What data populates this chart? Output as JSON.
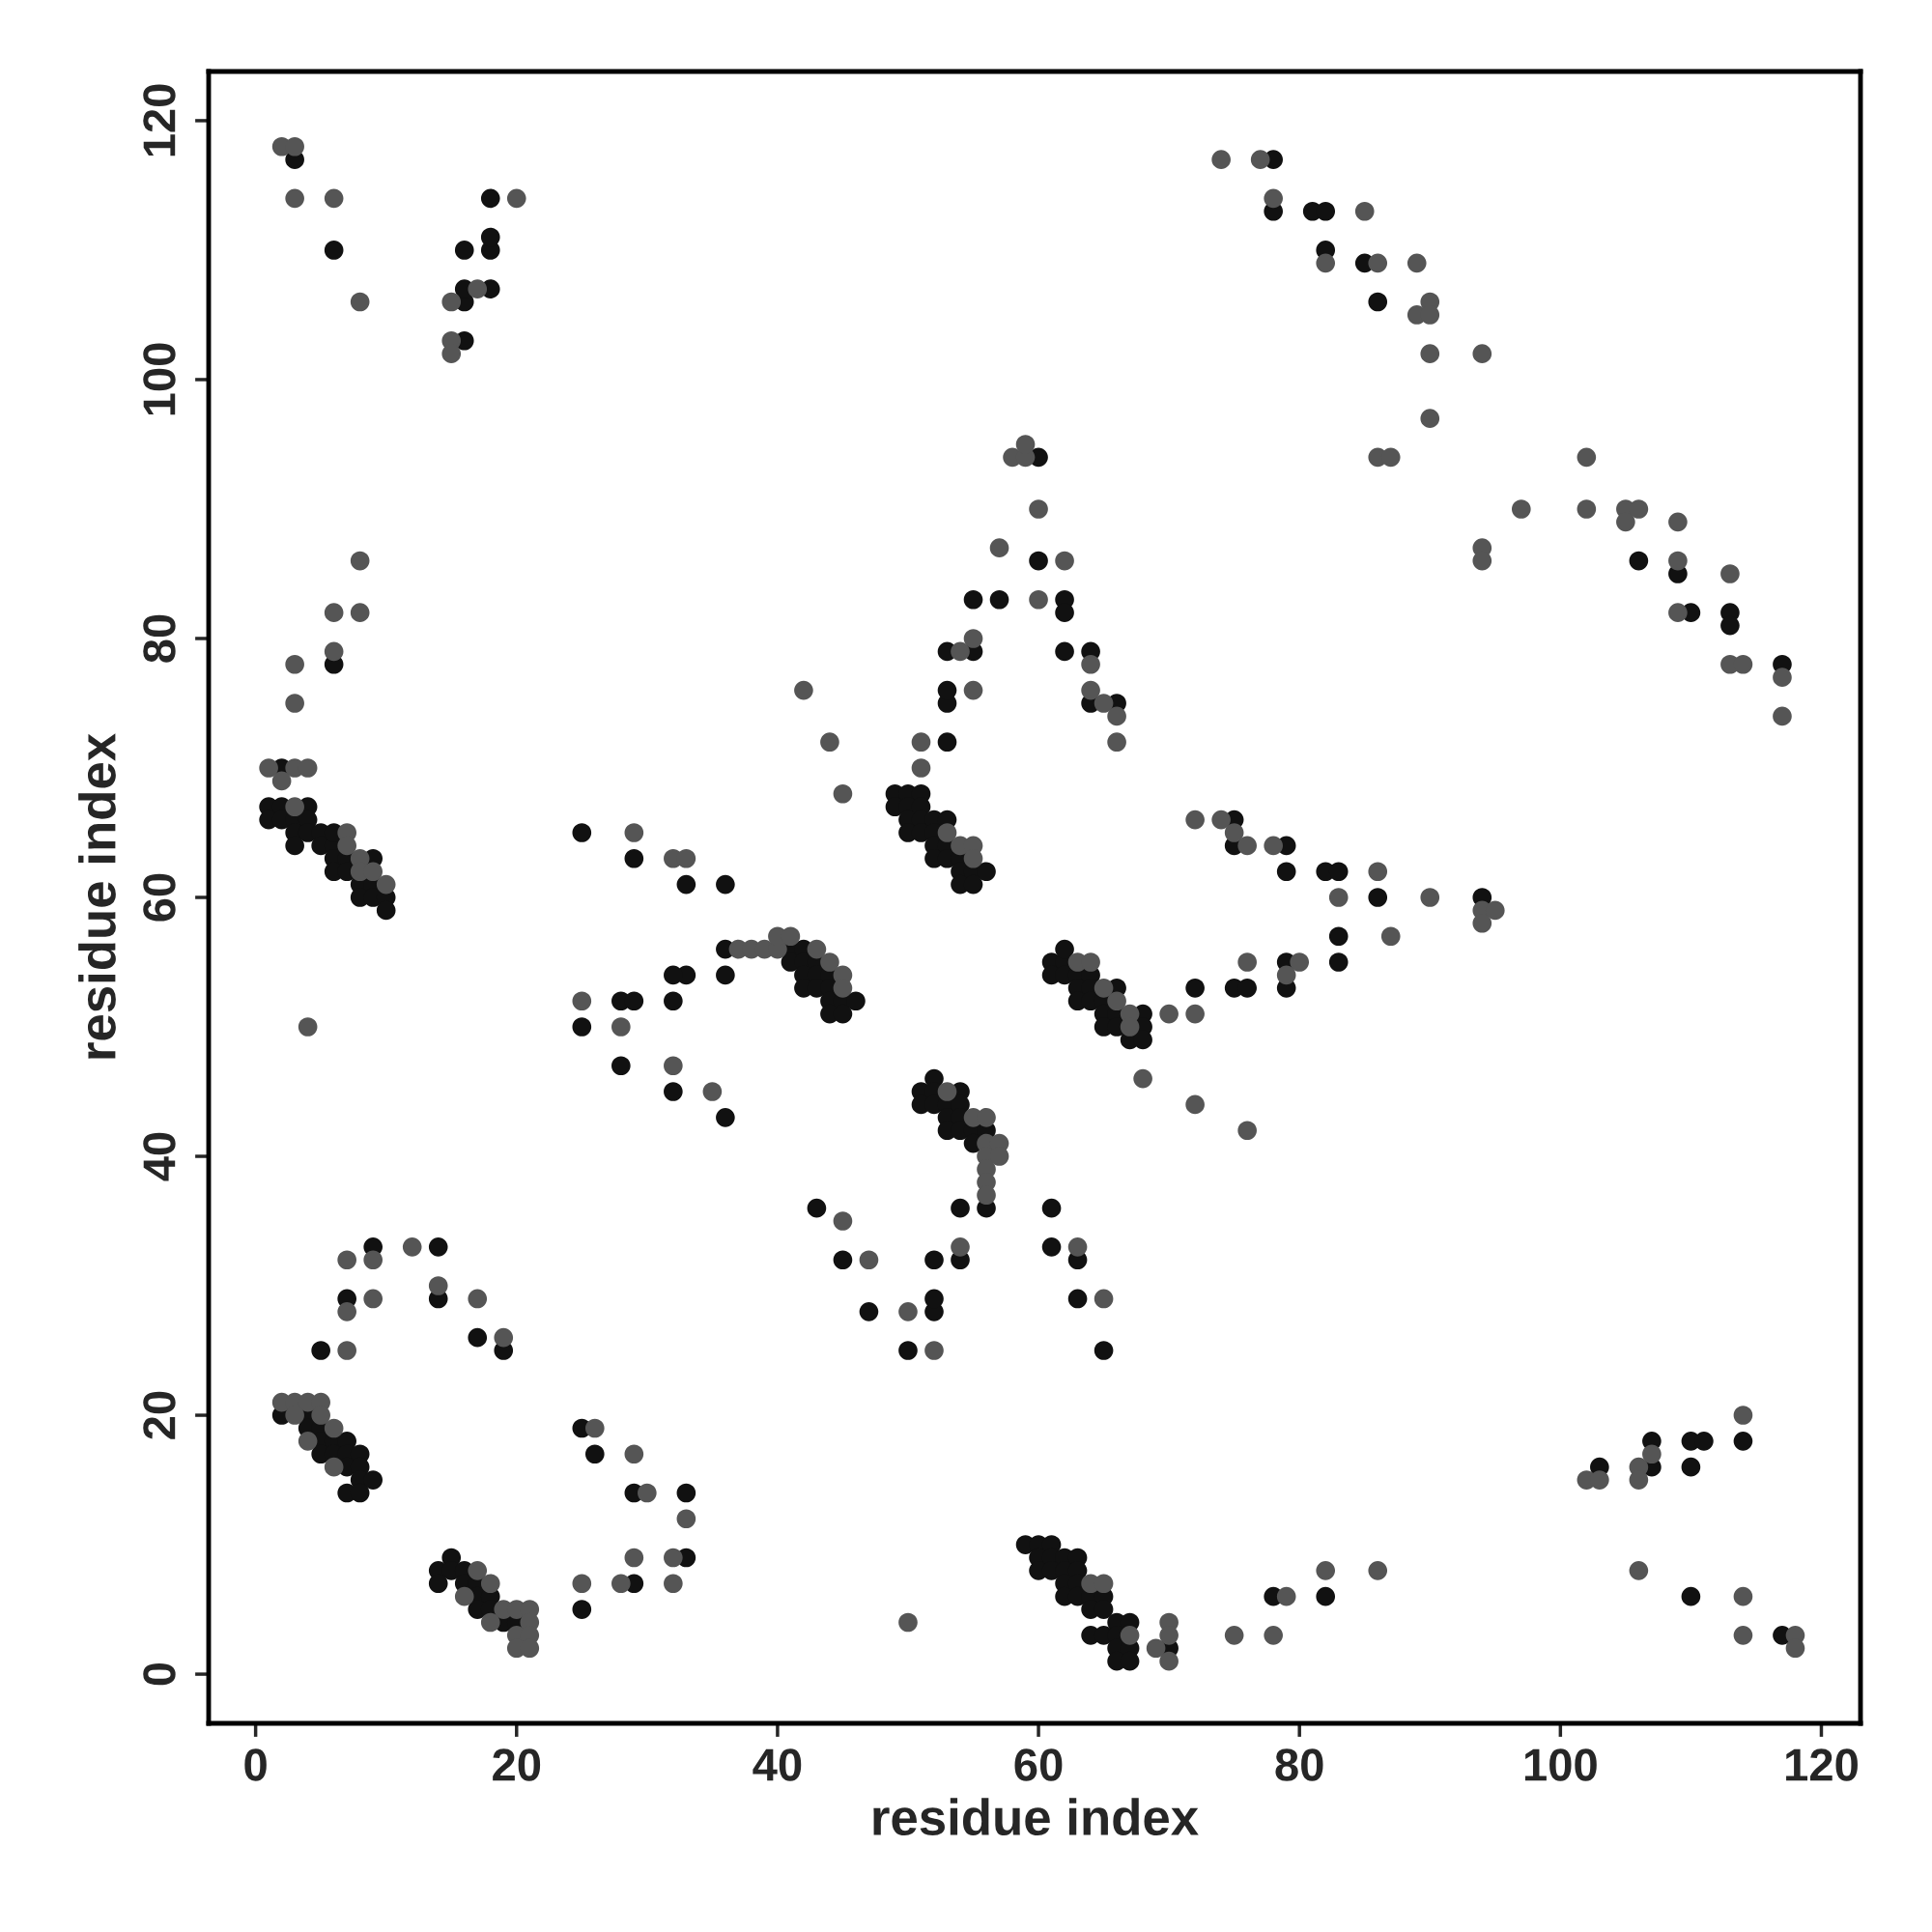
{
  "chart_data": {
    "type": "scatter",
    "xlabel": "residue index",
    "ylabel": "residue index",
    "xlim": [
      -3.6,
      123
    ],
    "ylim": [
      -3.8,
      123.8
    ],
    "xticks": [
      0,
      20,
      40,
      60,
      80,
      100,
      120
    ],
    "yticks": [
      0,
      20,
      40,
      60,
      80,
      100,
      120
    ],
    "grid": false,
    "marker": "circle",
    "series": [
      {
        "color": "#111111",
        "x": [
          3,
          6,
          16,
          16,
          16,
          16,
          18,
          18,
          18,
          18,
          78,
          78,
          81,
          82,
          82,
          85,
          86,
          106,
          109,
          110,
          113,
          113,
          117,
          6,
          2,
          1,
          2,
          4,
          1,
          2,
          3,
          4,
          3,
          4,
          5,
          3,
          5,
          6,
          6,
          6,
          7,
          9,
          6,
          7,
          8,
          9,
          8,
          9,
          10,
          10,
          9,
          14,
          14,
          7,
          17,
          5,
          19,
          2,
          4,
          4,
          5,
          5,
          6,
          7,
          5,
          6,
          7,
          8,
          7,
          8,
          8,
          9,
          7,
          8,
          14,
          15,
          15,
          16,
          14,
          16,
          17,
          17,
          18,
          17,
          18,
          19,
          20,
          25,
          26,
          29,
          33,
          33,
          29,
          25,
          25,
          29,
          33,
          36,
          36,
          41,
          42,
          41,
          42,
          43,
          42,
          43,
          44,
          42,
          43,
          44,
          44,
          45,
          46,
          44,
          45,
          36,
          33,
          32,
          28,
          29,
          32,
          25,
          28,
          32,
          36,
          43,
          45,
          47,
          50,
          52,
          52,
          52,
          54,
          54,
          51,
          52,
          51,
          52,
          52,
          53,
          53,
          54,
          54,
          54,
          53,
          54,
          55,
          55,
          56,
          56,
          49,
          50,
          51,
          49,
          50,
          51,
          50,
          51,
          52,
          53,
          50,
          51,
          52,
          52,
          53,
          52,
          53,
          54,
          54,
          55,
          56,
          54,
          55,
          53,
          53,
          53,
          53,
          55,
          55,
          57,
          60,
          60,
          62,
          62,
          62,
          64,
          64,
          66,
          61,
          62,
          61,
          62,
          62,
          63,
          64,
          63,
          64,
          63,
          64,
          66,
          65,
          65,
          66,
          68,
          65,
          66,
          68,
          67,
          68,
          61,
          61,
          63,
          63,
          65,
          59,
          60,
          61,
          60,
          61,
          62,
          63,
          60,
          61,
          62,
          63,
          62,
          63,
          62,
          63,
          64,
          65,
          64,
          65,
          66,
          67,
          64,
          65,
          66,
          66,
          67,
          66,
          67,
          70,
          78,
          82,
          75,
          75,
          79,
          79,
          82,
          83,
          86,
          94,
          83,
          83,
          79,
          79,
          75,
          76,
          72,
          103,
          107,
          107,
          110,
          111,
          110,
          114,
          110,
          117
        ],
        "values": [
          117,
          110,
          103,
          106,
          107,
          110,
          107,
          110,
          111,
          114,
          117,
          113,
          113,
          113,
          110,
          109,
          106,
          86,
          85,
          82,
          82,
          81,
          78,
          78,
          70,
          67,
          67,
          67,
          66,
          66,
          66,
          66,
          65,
          65,
          65,
          64,
          64,
          64,
          65,
          63,
          63,
          63,
          62,
          62,
          61,
          61,
          60,
          60,
          60,
          59,
          33,
          33,
          29,
          29,
          26,
          25,
          25,
          20,
          20,
          19,
          19,
          18,
          18,
          18,
          17,
          17,
          17,
          17,
          16,
          16,
          15,
          15,
          14,
          14,
          8,
          9,
          8,
          8,
          7,
          7,
          7,
          6,
          6,
          5,
          5,
          4,
          4,
          19,
          17,
          14,
          14,
          9,
          7,
          5,
          65,
          63,
          61,
          61,
          56,
          56,
          56,
          55,
          55,
          55,
          54,
          54,
          54,
          53,
          53,
          53,
          52,
          52,
          52,
          51,
          51,
          54,
          54,
          54,
          52,
          52,
          52,
          50,
          47,
          45,
          43,
          36,
          32,
          28,
          25,
          28,
          29,
          32,
          32,
          36,
          45,
          46,
          44,
          45,
          44,
          44,
          43,
          45,
          44,
          43,
          42,
          42,
          42,
          41,
          42,
          36,
          68,
          68,
          68,
          67,
          67,
          67,
          66,
          66,
          66,
          66,
          65,
          65,
          65,
          64,
          64,
          63,
          63,
          63,
          62,
          62,
          62,
          61,
          61,
          72,
          75,
          76,
          79,
          79,
          83,
          83,
          94,
          86,
          83,
          82,
          79,
          79,
          75,
          75,
          55,
          55,
          54,
          54,
          56,
          54,
          54,
          53,
          53,
          52,
          52,
          53,
          52,
          51,
          51,
          51,
          50,
          50,
          50,
          49,
          49,
          36,
          33,
          32,
          29,
          25,
          10,
          10,
          10,
          9,
          9,
          9,
          9,
          8,
          8,
          8,
          8,
          7,
          7,
          6,
          6,
          6,
          6,
          5,
          5,
          4,
          4,
          3,
          3,
          3,
          2,
          2,
          1,
          1,
          2,
          6,
          6,
          66,
          64,
          64,
          62,
          62,
          62,
          60,
          60,
          57,
          55,
          55,
          53,
          53,
          53,
          53,
          16,
          16,
          18,
          18,
          18,
          16,
          18,
          6,
          3
        ]
      },
      {
        "color": "#555555",
        "x": [
          2,
          3,
          3,
          6,
          8,
          15,
          15,
          15,
          17,
          20,
          74,
          77,
          78,
          82,
          85,
          86,
          89,
          89,
          90,
          90,
          90,
          90,
          94,
          86,
          87,
          94,
          94,
          97,
          102,
          102,
          105,
          105,
          106,
          109,
          109,
          109,
          113,
          113,
          114,
          117,
          117,
          8,
          6,
          8,
          6,
          3,
          3,
          1,
          3,
          4,
          2,
          3,
          7,
          7,
          8,
          8,
          9,
          10,
          4,
          12,
          7,
          9,
          14,
          9,
          17,
          7,
          19,
          7,
          2,
          3,
          4,
          5,
          3,
          5,
          6,
          4,
          6,
          17,
          18,
          16,
          19,
          18,
          20,
          21,
          21,
          20,
          21,
          20,
          21,
          26,
          29,
          30,
          33,
          29,
          32,
          25,
          28,
          32,
          29,
          32,
          33,
          37,
          38,
          39,
          40,
          40,
          41,
          43,
          44,
          45,
          45,
          25,
          28,
          32,
          35,
          45,
          47,
          50,
          52,
          54,
          50,
          53,
          55,
          56,
          56,
          56,
          57,
          57,
          56,
          56,
          56,
          53,
          54,
          55,
          55,
          45,
          44,
          42,
          51,
          51,
          54,
          55,
          55,
          57,
          58,
          59,
          59,
          60,
          60,
          62,
          64,
          64,
          65,
          66,
          66,
          63,
          64,
          65,
          66,
          67,
          67,
          70,
          68,
          63,
          65,
          64,
          65,
          67,
          69,
          70,
          70,
          70,
          75,
          79,
          78,
          82,
          86,
          72,
          74,
          75,
          76,
          78,
          86,
          83,
          90,
          94,
          95,
          94,
          87,
          80,
          79,
          76,
          72,
          72,
          76,
          102,
          103,
          106,
          106,
          107,
          114,
          106,
          114,
          114,
          118,
          118
        ],
        "values": [
          118,
          118,
          114,
          114,
          106,
          106,
          103,
          102,
          107,
          114,
          117,
          117,
          114,
          109,
          113,
          109,
          109,
          105,
          106,
          105,
          102,
          97,
          102,
          94,
          94,
          87,
          86,
          90,
          94,
          90,
          90,
          89,
          90,
          89,
          86,
          82,
          85,
          78,
          78,
          77,
          74,
          86,
          82,
          82,
          79,
          78,
          75,
          70,
          70,
          70,
          69,
          67,
          65,
          64,
          63,
          62,
          62,
          61,
          50,
          33,
          32,
          32,
          30,
          29,
          29,
          28,
          26,
          25,
          21,
          21,
          21,
          21,
          20,
          20,
          19,
          18,
          16,
          8,
          7,
          6,
          5,
          4,
          5,
          5,
          4,
          3,
          3,
          2,
          2,
          19,
          17,
          14,
          12,
          9,
          9,
          7,
          7,
          7,
          65,
          63,
          63,
          56,
          56,
          56,
          56,
          57,
          57,
          56,
          55,
          54,
          53,
          52,
          50,
          47,
          45,
          35,
          32,
          28,
          25,
          33,
          4,
          45,
          43,
          43,
          41,
          40,
          41,
          40,
          39,
          38,
          37,
          65,
          64,
          64,
          63,
          68,
          72,
          76,
          70,
          72,
          79,
          80,
          76,
          87,
          94,
          94,
          95,
          90,
          83,
          86,
          78,
          76,
          75,
          74,
          72,
          55,
          55,
          53,
          52,
          51,
          50,
          51,
          46,
          33,
          29,
          7,
          7,
          3,
          2,
          4,
          3,
          1,
          3,
          6,
          3,
          8,
          8,
          66,
          66,
          65,
          64,
          64,
          62,
          60,
          60,
          59,
          59,
          58,
          57,
          55,
          54,
          55,
          51,
          44,
          42,
          15,
          15,
          16,
          15,
          17,
          20,
          8,
          6,
          3,
          3,
          2
        ]
      }
    ]
  }
}
